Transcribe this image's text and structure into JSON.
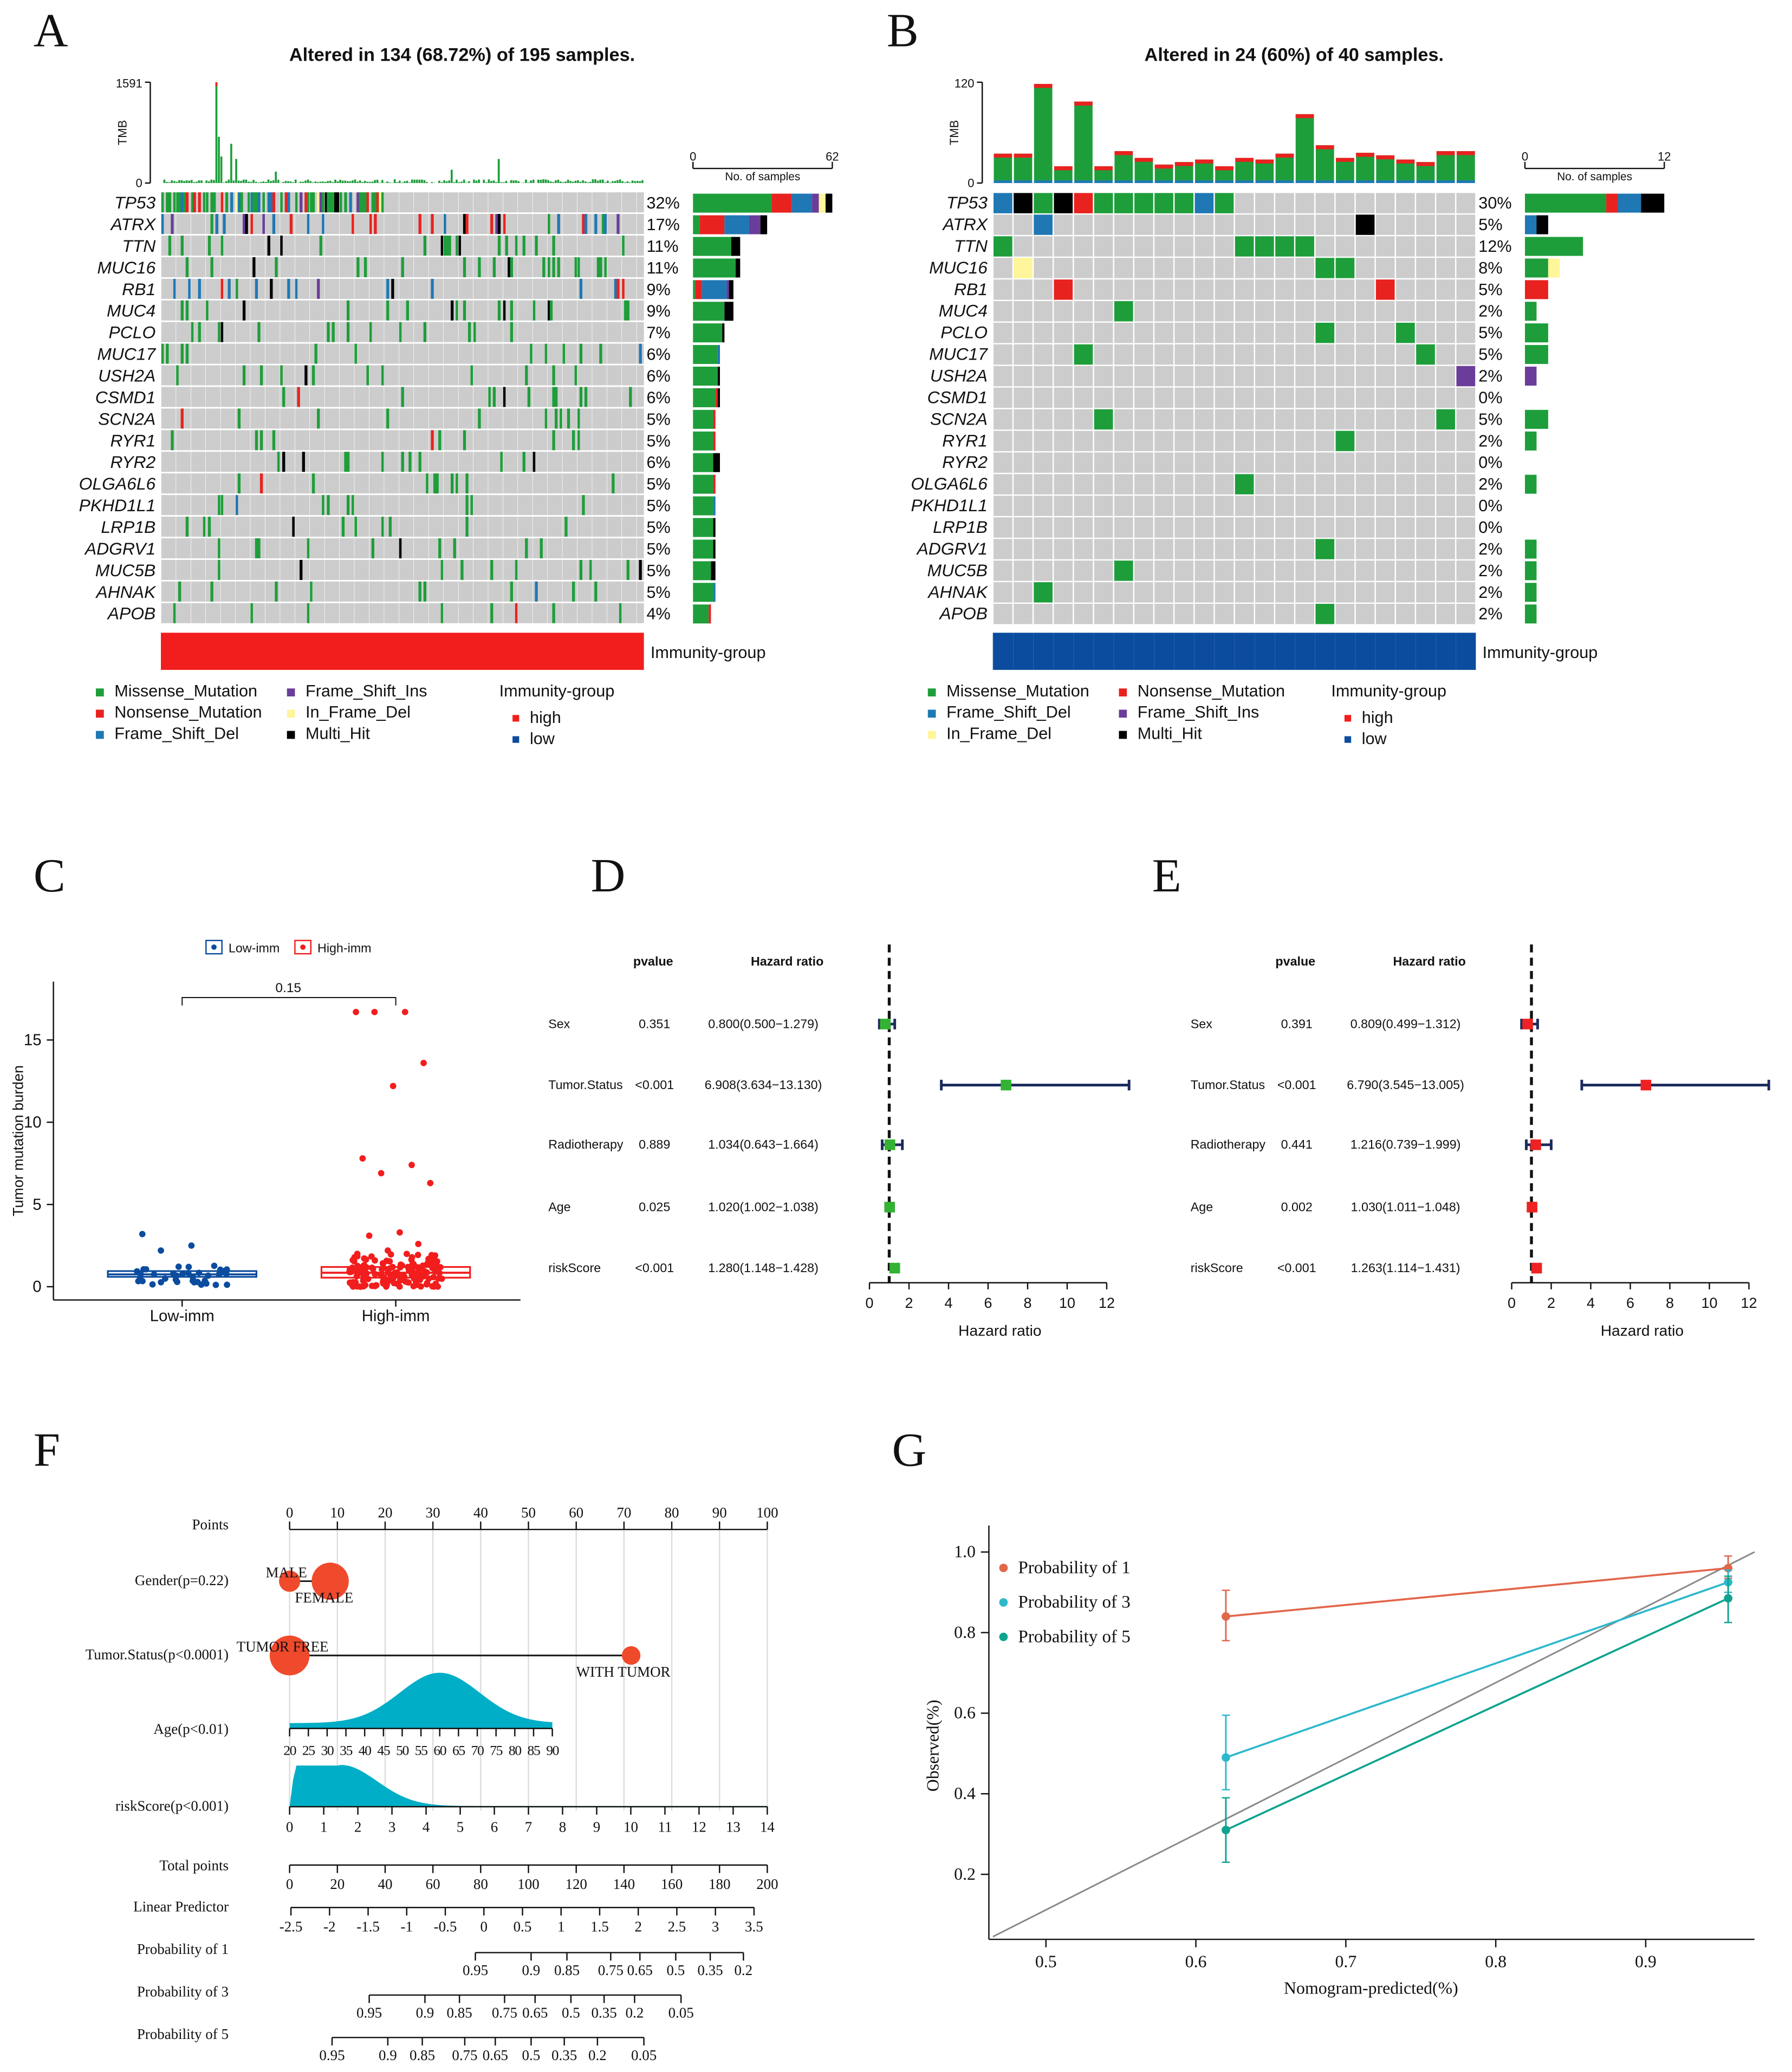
{
  "panel_labels": {
    "A": "A",
    "B": "B",
    "C": "C",
    "D": "D",
    "E": "E",
    "F": "F",
    "G": "G"
  },
  "mutation_colors": {
    "Missense_Mutation": "#1E9E3A",
    "Nonsense_Mutation": "#E8221F",
    "Frame_Shift_Del": "#1F78B4",
    "Frame_Shift_Ins": "#6A3D9A",
    "In_Frame_Del": "#FFF59A",
    "Multi_Hit": "#000000",
    "none": "#CCCCCC"
  },
  "oncoprint_a": {
    "title": "Altered in 134 (68.72%) of 195 samples.",
    "n_samples": 195,
    "tmb_label": "TMB",
    "tmb_max": "1591",
    "tmb_min": "0",
    "tmb_spikes": [
      {
        "col": 22,
        "value": 1591
      },
      {
        "col": 23,
        "value": 730
      },
      {
        "col": 24,
        "value": 420
      },
      {
        "col": 28,
        "value": 620
      },
      {
        "col": 30,
        "value": 380
      },
      {
        "col": 46,
        "value": 180
      },
      {
        "col": 117,
        "value": 210
      },
      {
        "col": 136,
        "value": 380
      }
    ],
    "side_axis": {
      "min": "0",
      "max": "62",
      "label": "No. of samples"
    },
    "genes": [
      {
        "name": "TP53",
        "pct": "32%",
        "stack": [
          [
            "Missense_Mutation",
            35
          ],
          [
            "Nonsense_Mutation",
            9
          ],
          [
            "Frame_Shift_Del",
            9
          ],
          [
            "Frame_Shift_Ins",
            3
          ],
          [
            "In_Frame_Del",
            3
          ],
          [
            "Multi_Hit",
            3
          ]
        ]
      },
      {
        "name": "ATRX",
        "pct": "17%",
        "stack": [
          [
            "Missense_Mutation",
            3
          ],
          [
            "Nonsense_Mutation",
            11
          ],
          [
            "Frame_Shift_Del",
            11
          ],
          [
            "Frame_Shift_Ins",
            5
          ],
          [
            "Multi_Hit",
            3
          ]
        ]
      },
      {
        "name": "TTN",
        "pct": "11%",
        "stack": [
          [
            "Missense_Mutation",
            17
          ],
          [
            "Multi_Hit",
            4
          ]
        ]
      },
      {
        "name": "MUC16",
        "pct": "11%",
        "stack": [
          [
            "Missense_Mutation",
            19
          ],
          [
            "Multi_Hit",
            2
          ]
        ]
      },
      {
        "name": "RB1",
        "pct": "9%",
        "stack": [
          [
            "Missense_Mutation",
            1
          ],
          [
            "Nonsense_Mutation",
            3
          ],
          [
            "Frame_Shift_Del",
            11
          ],
          [
            "Frame_Shift_Ins",
            1
          ],
          [
            "Multi_Hit",
            2
          ]
        ]
      },
      {
        "name": "MUC4",
        "pct": "9%",
        "stack": [
          [
            "Missense_Mutation",
            14
          ],
          [
            "Multi_Hit",
            4
          ]
        ]
      },
      {
        "name": "PCLO",
        "pct": "7%",
        "stack": [
          [
            "Missense_Mutation",
            13
          ],
          [
            "Multi_Hit",
            1
          ]
        ]
      },
      {
        "name": "MUC17",
        "pct": "6%",
        "stack": [
          [
            "Missense_Mutation",
            11
          ],
          [
            "Frame_Shift_Del",
            1
          ]
        ]
      },
      {
        "name": "USH2A",
        "pct": "6%",
        "stack": [
          [
            "Missense_Mutation",
            11
          ],
          [
            "Multi_Hit",
            1
          ]
        ]
      },
      {
        "name": "CSMD1",
        "pct": "6%",
        "stack": [
          [
            "Missense_Mutation",
            10
          ],
          [
            "Nonsense_Mutation",
            1
          ],
          [
            "Multi_Hit",
            1
          ]
        ]
      },
      {
        "name": "SCN2A",
        "pct": "5%",
        "stack": [
          [
            "Missense_Mutation",
            9
          ],
          [
            "Nonsense_Mutation",
            1
          ]
        ]
      },
      {
        "name": "RYR1",
        "pct": "5%",
        "stack": [
          [
            "Missense_Mutation",
            9
          ],
          [
            "Nonsense_Mutation",
            1
          ]
        ]
      },
      {
        "name": "RYR2",
        "pct": "6%",
        "stack": [
          [
            "Missense_Mutation",
            9
          ],
          [
            "Multi_Hit",
            3
          ]
        ]
      },
      {
        "name": "OLGA6L6",
        "pct": "5%",
        "stack": [
          [
            "Missense_Mutation",
            9
          ],
          [
            "Nonsense_Mutation",
            1
          ]
        ]
      },
      {
        "name": "PKHD1L1",
        "pct": "5%",
        "stack": [
          [
            "Missense_Mutation",
            9
          ],
          [
            "Frame_Shift_Del",
            1
          ]
        ]
      },
      {
        "name": "LRP1B",
        "pct": "5%",
        "stack": [
          [
            "Missense_Mutation",
            9
          ],
          [
            "Multi_Hit",
            1
          ]
        ]
      },
      {
        "name": "ADGRV1",
        "pct": "5%",
        "stack": [
          [
            "Missense_Mutation",
            9
          ],
          [
            "Multi_Hit",
            1
          ]
        ]
      },
      {
        "name": "MUC5B",
        "pct": "5%",
        "stack": [
          [
            "Missense_Mutation",
            8
          ],
          [
            "Multi_Hit",
            2
          ]
        ]
      },
      {
        "name": "AHNAK",
        "pct": "5%",
        "stack": [
          [
            "Missense_Mutation",
            9
          ],
          [
            "Frame_Shift_Del",
            1
          ]
        ]
      },
      {
        "name": "APOB",
        "pct": "4%",
        "stack": [
          [
            "Missense_Mutation",
            7
          ],
          [
            "Nonsense_Mutation",
            1
          ]
        ]
      }
    ],
    "group_bar_label": "Immunity-group",
    "group_color": "#F21D1D",
    "legend": {
      "columns": [
        [
          "Missense_Mutation",
          "Nonsense_Mutation",
          "Frame_Shift_Del"
        ],
        [
          "Frame_Shift_Ins",
          "In_Frame_Del",
          "Multi_Hit"
        ]
      ],
      "group_title": "Immunity-group",
      "group_items": [
        {
          "label": "high",
          "color": "#F21D1D"
        },
        {
          "label": "low",
          "color": "#0B4C9E"
        }
      ]
    }
  },
  "oncoprint_b": {
    "title": "Altered in 24 (60%) of 40 samples.",
    "n_columns": 24,
    "tmb_label": "TMB",
    "tmb_max": "120",
    "tmb_min": "0",
    "tmb_values": [
      35,
      35,
      118,
      20,
      97,
      20,
      38,
      30,
      22,
      25,
      28,
      20,
      30,
      28,
      35,
      82,
      45,
      30,
      36,
      33,
      28,
      25,
      38,
      38
    ],
    "side_axis": {
      "min": "0",
      "max": "12",
      "label": "No. of samples"
    },
    "genes": [
      {
        "name": "TP53",
        "pct": "30%"
      },
      {
        "name": "ATRX",
        "pct": "5%"
      },
      {
        "name": "TTN",
        "pct": "12%"
      },
      {
        "name": "MUC16",
        "pct": "8%"
      },
      {
        "name": "RB1",
        "pct": "5%"
      },
      {
        "name": "MUC4",
        "pct": "2%"
      },
      {
        "name": "PCLO",
        "pct": "5%"
      },
      {
        "name": "MUC17",
        "pct": "5%"
      },
      {
        "name": "USH2A",
        "pct": "2%"
      },
      {
        "name": "CSMD1",
        "pct": "0%"
      },
      {
        "name": "SCN2A",
        "pct": "5%"
      },
      {
        "name": "RYR1",
        "pct": "2%"
      },
      {
        "name": "RYR2",
        "pct": "0%"
      },
      {
        "name": "OLGA6L6",
        "pct": "2%"
      },
      {
        "name": "PKHD1L1",
        "pct": "0%"
      },
      {
        "name": "LRP1B",
        "pct": "0%"
      },
      {
        "name": "ADGRV1",
        "pct": "2%"
      },
      {
        "name": "MUC5B",
        "pct": "2%"
      },
      {
        "name": "AHNAK",
        "pct": "2%"
      },
      {
        "name": "APOB",
        "pct": "2%"
      }
    ],
    "mutations": [
      [
        0,
        0,
        "Frame_Shift_Del"
      ],
      [
        0,
        1,
        "Multi_Hit"
      ],
      [
        0,
        2,
        "Missense_Mutation"
      ],
      [
        0,
        3,
        "Multi_Hit"
      ],
      [
        0,
        4,
        "Nonsense_Mutation"
      ],
      [
        0,
        5,
        "Missense_Mutation"
      ],
      [
        0,
        6,
        "Missense_Mutation"
      ],
      [
        0,
        7,
        "Missense_Mutation"
      ],
      [
        0,
        8,
        "Missense_Mutation"
      ],
      [
        0,
        9,
        "Missense_Mutation"
      ],
      [
        0,
        10,
        "Frame_Shift_Del"
      ],
      [
        0,
        11,
        "Missense_Mutation"
      ],
      [
        1,
        2,
        "Frame_Shift_Del"
      ],
      [
        1,
        18,
        "Multi_Hit"
      ],
      [
        2,
        0,
        "Missense_Mutation"
      ],
      [
        2,
        12,
        "Missense_Mutation"
      ],
      [
        2,
        13,
        "Missense_Mutation"
      ],
      [
        2,
        14,
        "Missense_Mutation"
      ],
      [
        2,
        15,
        "Missense_Mutation"
      ],
      [
        3,
        1,
        "In_Frame_Del"
      ],
      [
        3,
        16,
        "Missense_Mutation"
      ],
      [
        3,
        17,
        "Missense_Mutation"
      ],
      [
        4,
        3,
        "Nonsense_Mutation"
      ],
      [
        4,
        19,
        "Nonsense_Mutation"
      ],
      [
        5,
        6,
        "Missense_Mutation"
      ],
      [
        6,
        16,
        "Missense_Mutation"
      ],
      [
        6,
        20,
        "Missense_Mutation"
      ],
      [
        7,
        4,
        "Missense_Mutation"
      ],
      [
        7,
        21,
        "Missense_Mutation"
      ],
      [
        8,
        23,
        "Frame_Shift_Ins"
      ],
      [
        10,
        5,
        "Missense_Mutation"
      ],
      [
        10,
        22,
        "Missense_Mutation"
      ],
      [
        11,
        17,
        "Missense_Mutation"
      ],
      [
        13,
        12,
        "Missense_Mutation"
      ],
      [
        16,
        16,
        "Missense_Mutation"
      ],
      [
        17,
        6,
        "Missense_Mutation"
      ],
      [
        18,
        2,
        "Missense_Mutation"
      ],
      [
        19,
        16,
        "Missense_Mutation"
      ]
    ],
    "group_bar_label": "Immunity-group",
    "group_color": "#0B4C9E",
    "legend": {
      "columns": [
        [
          "Missense_Mutation",
          "Frame_Shift_Del",
          "In_Frame_Del"
        ],
        [
          "Nonsense_Mutation",
          "Frame_Shift_Ins",
          "Multi_Hit"
        ]
      ],
      "group_title": "Immunity-group",
      "group_items": [
        {
          "label": "high",
          "color": "#F21D1D"
        },
        {
          "label": "low",
          "color": "#0B4C9E"
        }
      ]
    }
  },
  "chart_data": [
    {
      "id": "C",
      "type": "box+scatter",
      "ylabel": "Tumor mutation burden",
      "xlabel": "",
      "ylim": [
        -0.8,
        18
      ],
      "yticks": [
        "0",
        "5",
        "10",
        "15"
      ],
      "categories": [
        "Low-imm",
        "High-imm"
      ],
      "legend": [
        {
          "label": "Low-imm",
          "color": "#0B4C9E"
        },
        {
          "label": "High-imm",
          "color": "#F21D1D"
        }
      ],
      "pvalue": "0.15",
      "boxes": [
        {
          "q1": 0.6,
          "median": 0.75,
          "q3": 0.95
        },
        {
          "q1": 0.55,
          "median": 0.85,
          "q3": 1.2
        }
      ],
      "bulk_n": [
        38,
        150
      ],
      "bulk_range": [
        [
          0.1,
          1.3
        ],
        [
          0.0,
          2.0
        ]
      ],
      "outliers": [
        [
          3.2,
          2.5,
          2.2
        ],
        [
          16.7,
          16.7,
          16.7,
          13.6,
          12.2,
          7.8,
          7.4,
          6.9,
          6.3,
          3.3,
          3.1,
          2.6,
          2.2,
          2.0
        ]
      ]
    },
    {
      "id": "D",
      "type": "forest",
      "headers": {
        "pvalue": "pvalue",
        "hr": "Hazard ratio"
      },
      "xlabel": "Hazard ratio",
      "xlim": [
        0,
        12
      ],
      "xticks": [
        "0",
        "2",
        "4",
        "6",
        "8",
        "10",
        "12"
      ],
      "color": "#33B233",
      "rows": [
        {
          "label": "Sex",
          "pvalue": "0.351",
          "hr_text": "0.800(0.500−1.279)",
          "hr": 0.8,
          "lo": 0.5,
          "hi": 1.279
        },
        {
          "label": "Tumor.Status",
          "pvalue": "<0.001",
          "hr_text": "6.908(3.634−13.130)",
          "hr": 6.908,
          "lo": 3.634,
          "hi": 13.13
        },
        {
          "label": "Radiotherapy",
          "pvalue": "0.889",
          "hr_text": "1.034(0.643−1.664)",
          "hr": 1.034,
          "lo": 0.643,
          "hi": 1.664
        },
        {
          "label": "Age",
          "pvalue": "0.025",
          "hr_text": "1.020(1.002−1.038)",
          "hr": 1.02,
          "lo": 1.002,
          "hi": 1.038
        },
        {
          "label": "riskScore",
          "pvalue": "<0.001",
          "hr_text": "1.280(1.148−1.428)",
          "hr": 1.28,
          "lo": 1.148,
          "hi": 1.428
        }
      ]
    },
    {
      "id": "E",
      "type": "forest",
      "headers": {
        "pvalue": "pvalue",
        "hr": "Hazard ratio"
      },
      "xlabel": "Hazard ratio",
      "xlim": [
        0,
        12
      ],
      "xticks": [
        "0",
        "2",
        "4",
        "6",
        "8",
        "10",
        "12"
      ],
      "color": "#EE2222",
      "rows": [
        {
          "label": "Sex",
          "pvalue": "0.391",
          "hr_text": "0.809(0.499−1.312)",
          "hr": 0.809,
          "lo": 0.499,
          "hi": 1.312
        },
        {
          "label": "Tumor.Status",
          "pvalue": "<0.001",
          "hr_text": "6.790(3.545−13.005)",
          "hr": 6.79,
          "lo": 3.545,
          "hi": 13.005
        },
        {
          "label": "Radiotherapy",
          "pvalue": "0.441",
          "hr_text": "1.216(0.739−1.999)",
          "hr": 1.216,
          "lo": 0.739,
          "hi": 1.999
        },
        {
          "label": "Age",
          "pvalue": "0.002",
          "hr_text": "1.030(1.011−1.048)",
          "hr": 1.03,
          "lo": 1.011,
          "hi": 1.048
        },
        {
          "label": "riskScore",
          "pvalue": "<0.001",
          "hr_text": "1.263(1.114−1.431)",
          "hr": 1.263,
          "lo": 1.114,
          "hi": 1.431
        }
      ]
    },
    {
      "id": "F",
      "type": "nomogram",
      "rows": {
        "points": "Points",
        "gender": "Gender(p=0.22)",
        "tumor": "Tumor.Status(p<0.0001)",
        "age": "Age(p<0.01)",
        "risk": "riskScore(p<0.001)",
        "total": "Total points",
        "lp": "Linear Predictor",
        "p1": "Probability of 1",
        "p3": "Probability of 3",
        "p5": "Probability of 5"
      },
      "points_ticks": [
        "0",
        "10",
        "20",
        "30",
        "40",
        "50",
        "60",
        "70",
        "80",
        "90",
        "100"
      ],
      "gender": [
        {
          "label": "MALE",
          "points": 0
        },
        {
          "label": "FEMALE",
          "points": 8.5
        }
      ],
      "tumor": [
        {
          "label": "TUMOR FREE",
          "points": 0
        },
        {
          "label": "WITH TUMOR",
          "points": 71.5
        }
      ],
      "age_ticks": [
        "20",
        "25",
        "30",
        "35",
        "40",
        "45",
        "50",
        "55",
        "60",
        "65",
        "70",
        "75",
        "80",
        "85",
        "90"
      ],
      "age_max_points": 55,
      "risk_ticks": [
        "0",
        "1",
        "2",
        "3",
        "4",
        "5",
        "6",
        "7",
        "8",
        "9",
        "10",
        "11",
        "12",
        "13",
        "14"
      ],
      "total_ticks": [
        "0",
        "20",
        "40",
        "60",
        "80",
        "100",
        "120",
        "140",
        "160",
        "180",
        "200"
      ],
      "lp_ticks": [
        "-2.5",
        "-2",
        "-1.5",
        "-1",
        "-0.5",
        "0",
        "0.5",
        "1",
        "1.5",
        "2",
        "2.5",
        "3",
        "3.5"
      ],
      "p1_ticks": [
        "0.95",
        "0.9",
        "0.85",
        "0.75",
        "0.65",
        "0.5",
        "0.35",
        "0.2"
      ],
      "p3_ticks": [
        "0.95",
        "0.9",
        "0.85",
        "0.75",
        "0.65",
        "0.5",
        "0.35",
        "0.2",
        "0.05"
      ],
      "p5_ticks": [
        "0.95",
        "0.9",
        "0.85",
        "0.75",
        "0.65",
        "0.5",
        "0.35",
        "0.2",
        "0.05"
      ],
      "marker_color": "#F04A2C",
      "density_color": "#00AEC7"
    },
    {
      "id": "G",
      "type": "line",
      "xlabel": "Nomogram-predicted(%)",
      "ylabel": "Observed(%)",
      "xlim": [
        0.462,
        0.97
      ],
      "ylim": [
        0.04,
        1.0
      ],
      "xticks": [
        "0.5",
        "0.6",
        "0.7",
        "0.8",
        "0.9"
      ],
      "yticks": [
        "0.2",
        "0.4",
        "0.6",
        "0.8",
        "1.0"
      ],
      "series": [
        {
          "name": "Probability of 1",
          "color": "#E2664A",
          "points": [
            {
              "x": 0.62,
              "y": 0.84,
              "lo": 0.78,
              "hi": 0.905
            },
            {
              "x": 0.955,
              "y": 0.96,
              "lo": 0.935,
              "hi": 0.99
            }
          ]
        },
        {
          "name": "Probability of 3",
          "color": "#2DB8CC",
          "points": [
            {
              "x": 0.62,
              "y": 0.49,
              "lo": 0.41,
              "hi": 0.595
            },
            {
              "x": 0.955,
              "y": 0.925,
              "lo": 0.9,
              "hi": 0.955
            }
          ]
        },
        {
          "name": "Probability of 5",
          "color": "#0FA38F",
          "points": [
            {
              "x": 0.62,
              "y": 0.31,
              "lo": 0.23,
              "hi": 0.39
            },
            {
              "x": 0.955,
              "y": 0.885,
              "lo": 0.825,
              "hi": 0.94
            }
          ]
        }
      ],
      "reference_line": "diagonal"
    }
  ]
}
